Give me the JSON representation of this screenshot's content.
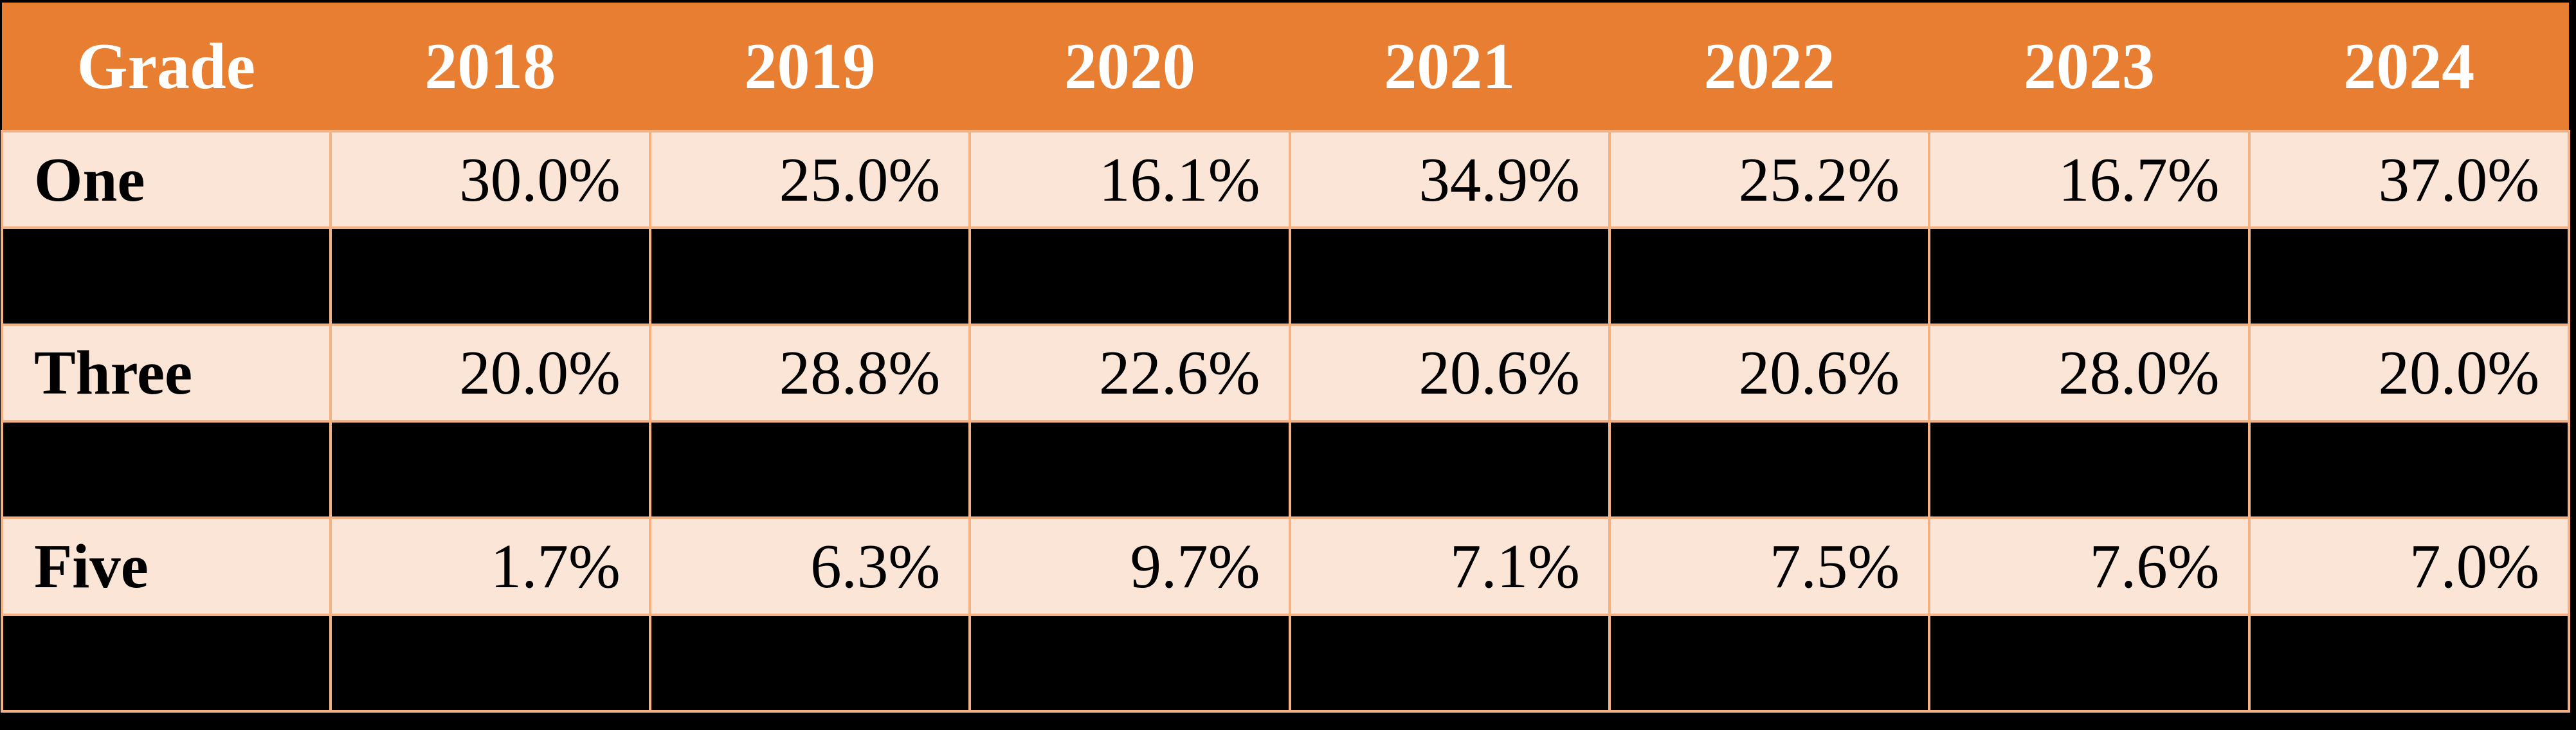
{
  "colors": {
    "page_bg": "#000000",
    "header_bg": "#E87E31",
    "header_text": "#FFFFFF",
    "cell_bg": "#FBE5D6",
    "cell_text": "#000000",
    "border": "#F4B183",
    "redacted_bg": "#000000"
  },
  "table": {
    "headers": [
      "Grade",
      "2018",
      "2019",
      "2020",
      "2021",
      "2022",
      "2023",
      "2024"
    ],
    "rows": [
      {
        "label": "One",
        "redacted": false,
        "values": [
          "30.0%",
          "25.0%",
          "16.1%",
          "34.9%",
          "25.2%",
          "16.7%",
          "37.0%"
        ]
      },
      {
        "label": "",
        "redacted": true,
        "values": [
          "",
          "",
          "",
          "",
          "",
          "",
          ""
        ]
      },
      {
        "label": "Three",
        "redacted": false,
        "values": [
          "20.0%",
          "28.8%",
          "22.6%",
          "20.6%",
          "20.6%",
          "28.0%",
          "20.0%"
        ]
      },
      {
        "label": "",
        "redacted": true,
        "values": [
          "",
          "",
          "",
          "",
          "",
          "",
          ""
        ]
      },
      {
        "label": "Five",
        "redacted": false,
        "values": [
          "1.7%",
          "6.3%",
          "9.7%",
          "7.1%",
          "7.5%",
          "7.6%",
          "7.0%"
        ]
      },
      {
        "label": "",
        "redacted": true,
        "values": [
          "",
          "",
          "",
          "",
          "",
          "",
          ""
        ]
      }
    ]
  },
  "chart_data": {
    "type": "table",
    "title": "",
    "columns": [
      "Grade",
      "2018",
      "2019",
      "2020",
      "2021",
      "2022",
      "2023",
      "2024"
    ],
    "rows": [
      {
        "label": "One",
        "redacted": false,
        "values_pct": [
          30.0,
          25.0,
          16.1,
          34.9,
          25.2,
          16.7,
          37.0
        ]
      },
      {
        "label": "",
        "redacted": true,
        "values_pct": null
      },
      {
        "label": "Three",
        "redacted": false,
        "values_pct": [
          20.0,
          28.8,
          22.6,
          20.6,
          20.6,
          28.0,
          20.0
        ]
      },
      {
        "label": "",
        "redacted": true,
        "values_pct": null
      },
      {
        "label": "Five",
        "redacted": false,
        "values_pct": [
          1.7,
          6.3,
          9.7,
          7.1,
          7.5,
          7.6,
          7.0
        ]
      },
      {
        "label": "",
        "redacted": true,
        "values_pct": null
      }
    ],
    "layout_hints": {
      "header_row_style": "solid orange, white bold centered text, no inner borders",
      "data_row_style": "light peach cells, orange grid borders, labels left-aligned bold, values right-aligned",
      "redacted_row_style": "solid black cells with orange grid borders",
      "outer_background": "black"
    }
  }
}
